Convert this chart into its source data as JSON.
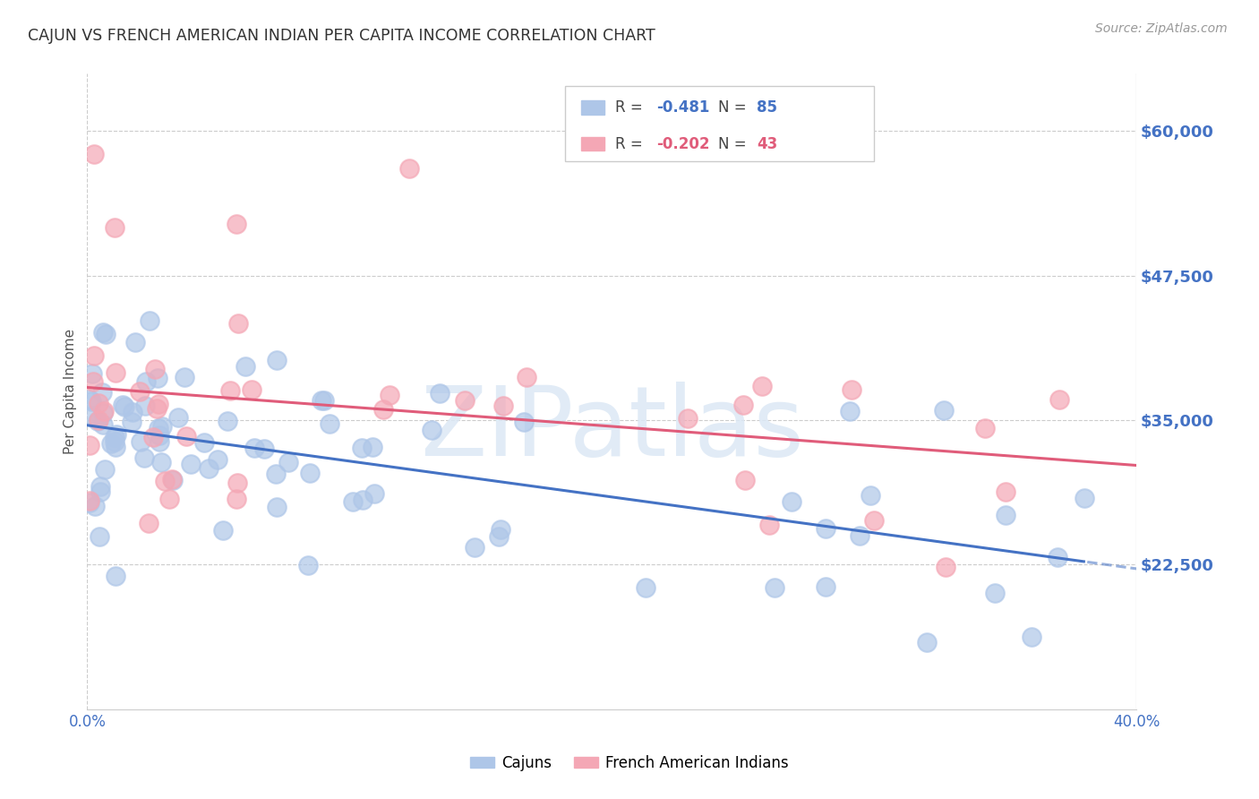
{
  "title": "CAJUN VS FRENCH AMERICAN INDIAN PER CAPITA INCOME CORRELATION CHART",
  "source": "Source: ZipAtlas.com",
  "ylabel": "Per Capita Income",
  "xlim": [
    0.0,
    0.4
  ],
  "ylim": [
    10000,
    65000
  ],
  "yticks": [
    22500,
    35000,
    47500,
    60000
  ],
  "ytick_labels": [
    "$22,500",
    "$35,000",
    "$47,500",
    "$60,000"
  ],
  "cajun_R": -0.481,
  "cajun_N": 85,
  "french_R": -0.202,
  "french_N": 43,
  "cajun_color": "#aec6e8",
  "french_color": "#f4a7b5",
  "cajun_line_color": "#4472c4",
  "french_line_color": "#e05c7a",
  "background_color": "#ffffff",
  "grid_color": "#cccccc",
  "title_color": "#333333",
  "axis_label_color": "#555555",
  "ytick_color": "#4472c4",
  "xtick_color": "#4472c4",
  "watermark": "ZIPatlas"
}
